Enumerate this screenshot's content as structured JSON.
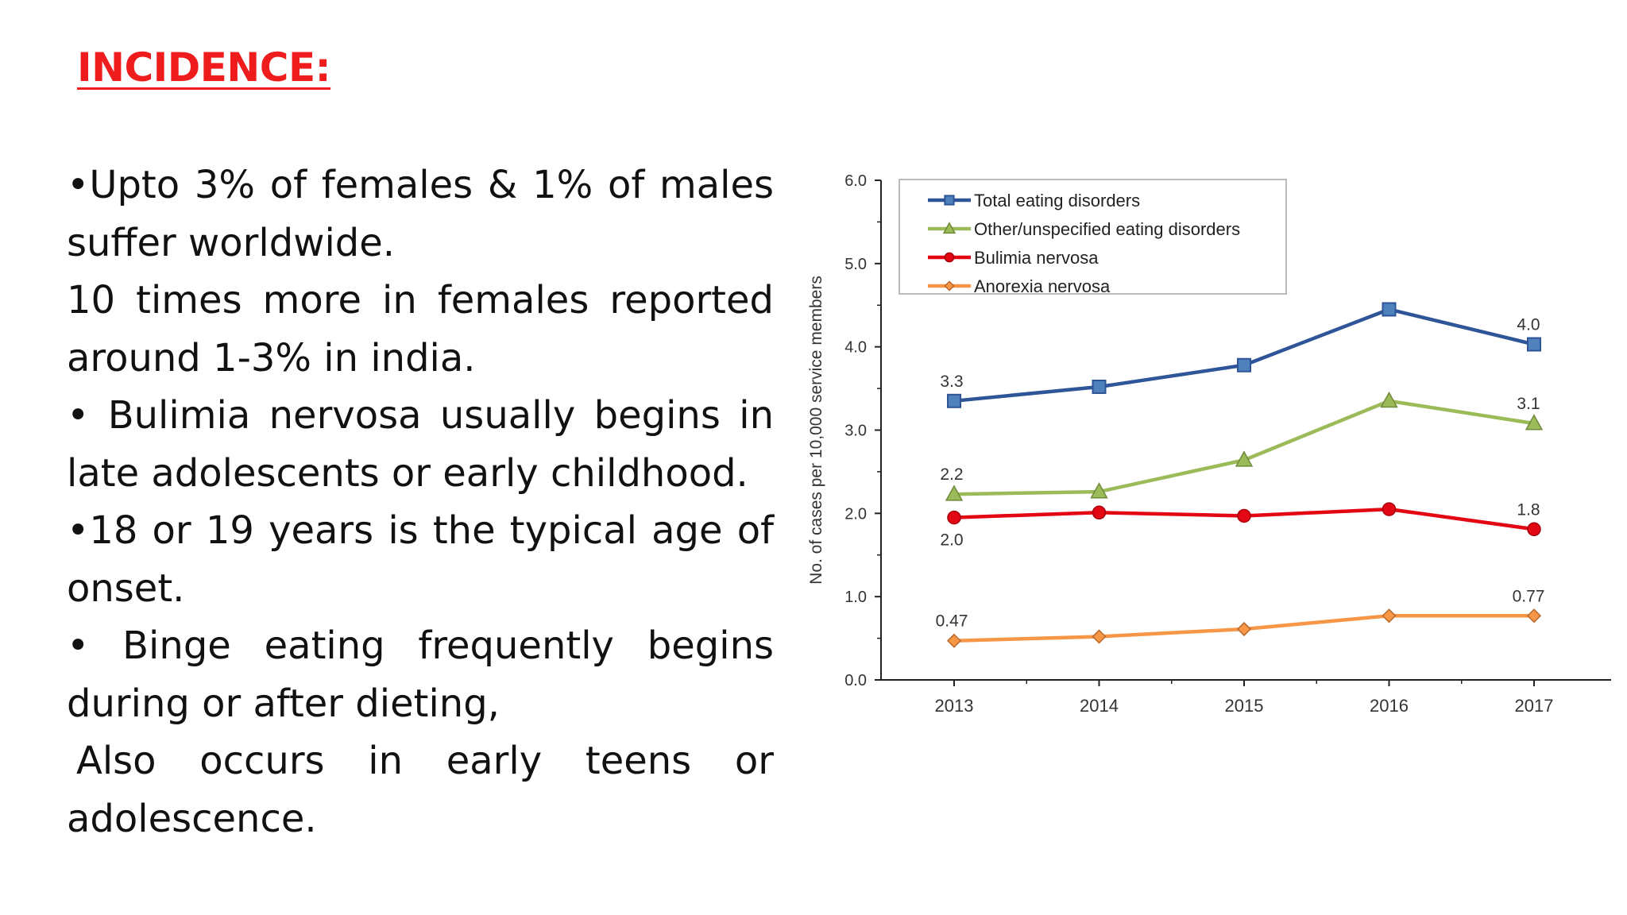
{
  "slide": {
    "title": "INCIDENCE:",
    "paragraphs": [
      "•Upto 3% of females & 1% of males suffer worldwide.",
      "10 times  more in females reported around 1-3%  in india.",
      "• Bulimia nervosa usually begins in late adolescents or early childhood.",
      "•18 or 19 years is the typical age of onset.",
      "• Binge eating frequently begins during or after dieting,",
      " Also occurs in early teens or adolescence."
    ]
  },
  "chart_data": {
    "type": "line",
    "title": "",
    "xlabel": "",
    "ylabel": "No. of cases per 10,000 service members",
    "x": [
      "2013",
      "2014",
      "2015",
      "2016",
      "2017"
    ],
    "ylim": [
      0,
      6
    ],
    "yticks": [
      "0.0",
      "1.0",
      "2.0",
      "3.0",
      "4.0",
      "5.0",
      "6.0"
    ],
    "grid": false,
    "legend_position": "top-left",
    "series": [
      {
        "name": "Total eating disorders",
        "values": [
          3.35,
          3.52,
          3.78,
          4.45,
          4.03
        ],
        "color": "#2e5597",
        "marker": "square",
        "labels": [
          {
            "i": 0,
            "text": "3.3",
            "pos": "above"
          },
          {
            "i": 4,
            "text": "4.0",
            "pos": "above"
          }
        ]
      },
      {
        "name": "Other/unspecified eating disorders",
        "values": [
          2.23,
          2.26,
          2.64,
          3.35,
          3.08
        ],
        "color": "#9bbb59",
        "marker": "triangle",
        "labels": [
          {
            "i": 0,
            "text": "2.2",
            "pos": "above"
          },
          {
            "i": 4,
            "text": "3.1",
            "pos": "above"
          }
        ]
      },
      {
        "name": "Bulimia nervosa",
        "values": [
          1.95,
          2.01,
          1.97,
          2.05,
          1.81
        ],
        "color": "#e30613",
        "marker": "circle",
        "labels": [
          {
            "i": 0,
            "text": "2.0",
            "pos": "below"
          },
          {
            "i": 4,
            "text": "1.8",
            "pos": "above"
          }
        ]
      },
      {
        "name": "Anorexia nervosa",
        "values": [
          0.47,
          0.52,
          0.61,
          0.77,
          0.77
        ],
        "color": "#f79646",
        "marker": "diamond",
        "labels": [
          {
            "i": 0,
            "text": "0.47",
            "pos": "above"
          },
          {
            "i": 4,
            "text": "0.77",
            "pos": "above"
          }
        ]
      }
    ]
  }
}
